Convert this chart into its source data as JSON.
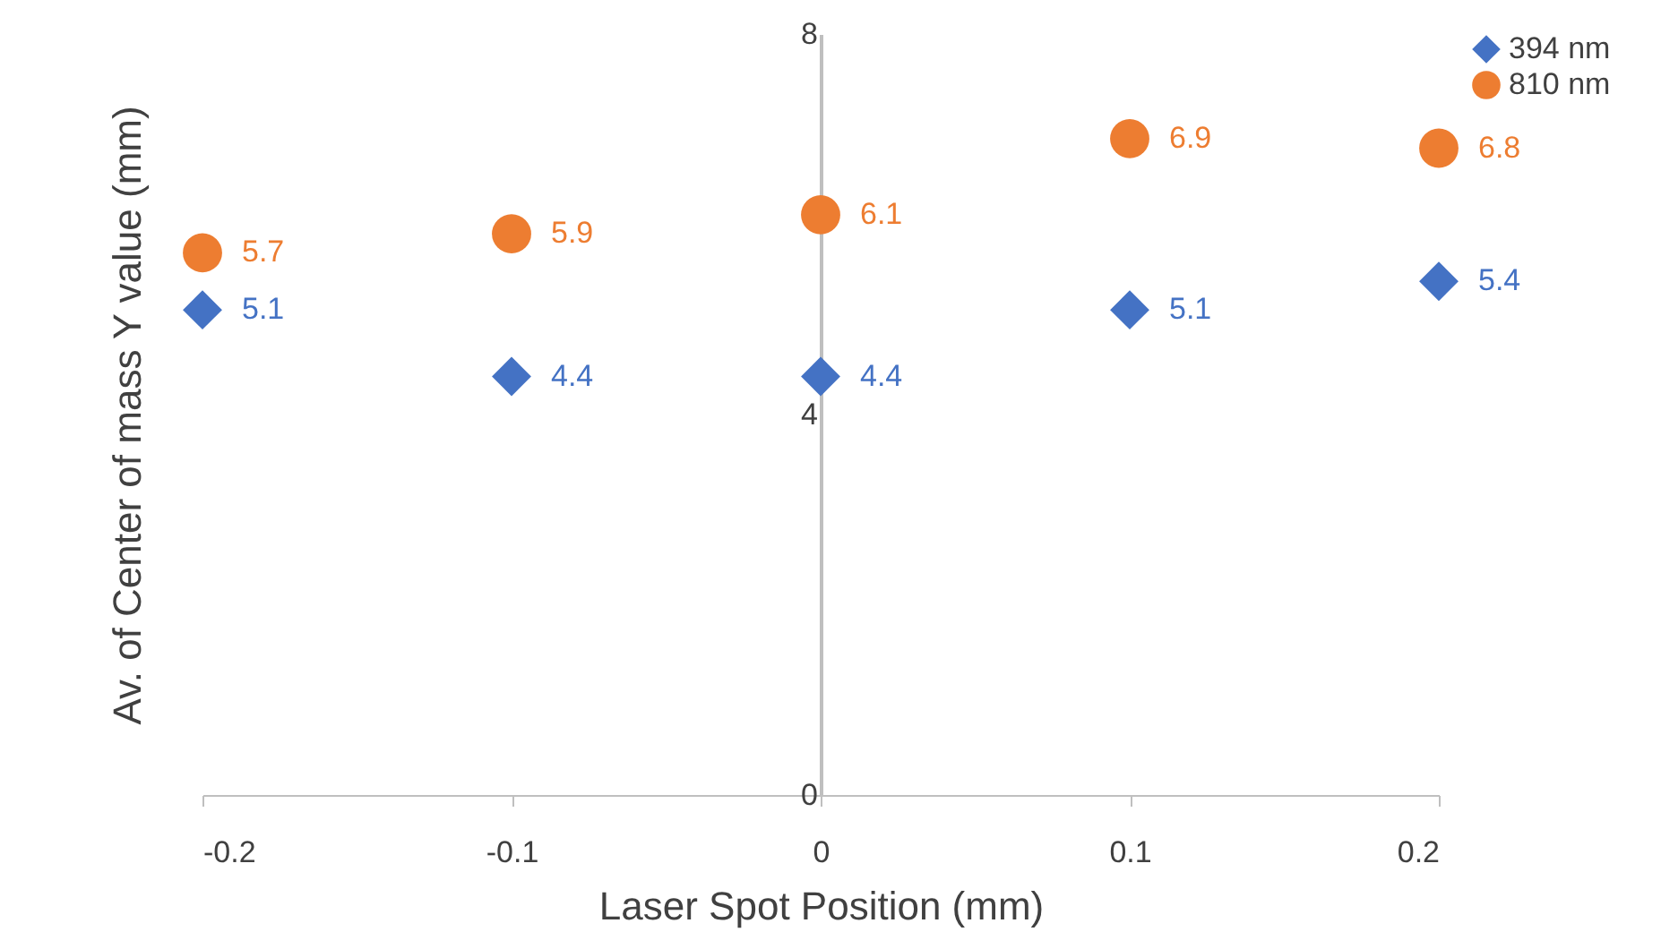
{
  "chart_data": {
    "type": "scatter",
    "xlabel": "Laser Spot Position (mm)",
    "ylabel": "Av. of Center of mass Y value (mm)",
    "x": [
      -0.2,
      -0.1,
      0,
      0.1,
      0.2
    ],
    "series": [
      {
        "name": "394 nm",
        "color": "#4472c4",
        "marker": "diamond",
        "values": [
          5.1,
          4.4,
          4.4,
          5.1,
          5.4
        ]
      },
      {
        "name": "810 nm",
        "color": "#ed7d31",
        "marker": "circle",
        "values": [
          5.7,
          5.9,
          6.1,
          6.9,
          6.8
        ]
      }
    ],
    "xlim": [
      -0.2,
      0.2
    ],
    "xticks": [
      -0.2,
      -0.1,
      0,
      0.1,
      0.2
    ],
    "ylim": [
      0,
      8
    ],
    "yticks": [
      0,
      4,
      8
    ],
    "grid": false,
    "legend": "right",
    "data_labels": true
  }
}
